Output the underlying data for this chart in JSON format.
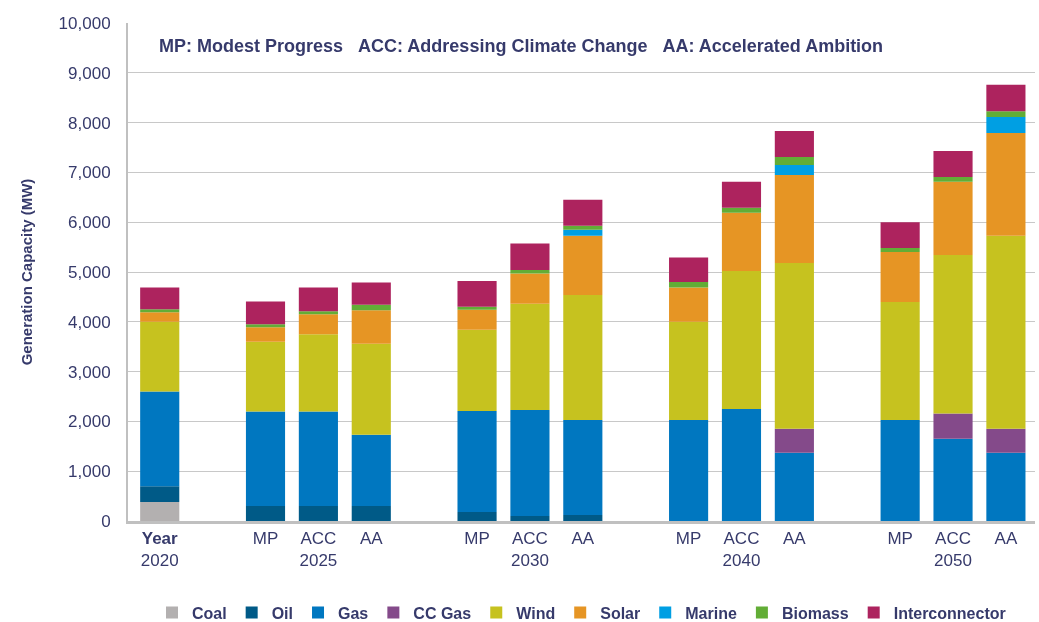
{
  "chart_data": {
    "type": "bar",
    "stacked": true,
    "ylabel": "Generation Capacity (MW)",
    "annotations": [
      "MP: Modest Progress   ACC: Addressing Climate Change   AA: Accelerated Ambition"
    ],
    "categories": [
      "Year\n2020",
      null,
      "MP",
      "ACC\n2025",
      "AA",
      null,
      "MP",
      "ACC\n2030",
      "AA",
      null,
      "MP",
      "ACC\n2040",
      "AA",
      null,
      "MP",
      "ACC\n2050",
      "AA"
    ],
    "series": [
      {
        "name": "Coal",
        "color": "#b3b0b0",
        "values": [
          380,
          null,
          null,
          null,
          null,
          null,
          null,
          null,
          null,
          null,
          null,
          null,
          null,
          null,
          null,
          null,
          null
        ]
      },
      {
        "name": "Oil",
        "color": "#005a87",
        "values": [
          320,
          null,
          300,
          300,
          300,
          null,
          180,
          100,
          120,
          null,
          null,
          null,
          null,
          null,
          null,
          null,
          null
        ]
      },
      {
        "name": "Gas",
        "color": "#0077c0",
        "values": [
          1900,
          null,
          1900,
          1900,
          1430,
          null,
          2030,
          2130,
          1910,
          null,
          2030,
          2250,
          1370,
          null,
          2030,
          1650,
          1370
        ]
      },
      {
        "name": "CC Gas",
        "color": "#844a8a",
        "values": [
          null,
          null,
          null,
          null,
          null,
          null,
          null,
          null,
          null,
          null,
          null,
          null,
          480,
          null,
          null,
          510,
          480
        ]
      },
      {
        "name": "Wind",
        "color": "#c6c21f",
        "values": [
          1400,
          null,
          1400,
          1550,
          1830,
          null,
          1630,
          2130,
          2510,
          null,
          1970,
          2770,
          3330,
          null,
          2370,
          3180,
          3880
        ]
      },
      {
        "name": "Solar",
        "color": "#e69524",
        "values": [
          190,
          null,
          290,
          400,
          670,
          null,
          400,
          610,
          1190,
          null,
          690,
          1170,
          1770,
          null,
          1000,
          1470,
          2060
        ]
      },
      {
        "name": "Marine",
        "color": "#009fe3",
        "values": [
          null,
          null,
          null,
          null,
          null,
          null,
          null,
          null,
          120,
          null,
          null,
          null,
          200,
          null,
          null,
          null,
          320
        ]
      },
      {
        "name": "Biomass",
        "color": "#62ad36",
        "values": [
          60,
          null,
          60,
          60,
          110,
          null,
          60,
          70,
          80,
          null,
          110,
          100,
          160,
          null,
          80,
          100,
          120
        ]
      },
      {
        "name": "Interconnector",
        "color": "#ad235e",
        "values": [
          440,
          null,
          460,
          480,
          450,
          null,
          520,
          530,
          520,
          null,
          490,
          520,
          520,
          null,
          520,
          520,
          530
        ]
      }
    ],
    "ylim": [
      0,
      10000
    ],
    "yticks": [
      0,
      {
        "value": 1000,
        "label": "1,000"
      },
      {
        "value": 2000,
        "label": "2,000"
      },
      {
        "value": 3000,
        "label": "3,000"
      },
      {
        "value": 4000,
        "label": "4,000"
      },
      {
        "value": 5000,
        "label": "5,000"
      },
      {
        "value": 6000,
        "label": "6,000"
      },
      {
        "value": 7000,
        "label": "7,000"
      },
      {
        "value": 8000,
        "label": "8,000"
      },
      {
        "value": 9000,
        "label": "9,000"
      },
      {
        "value": 10000,
        "label": "10,000"
      }
    ],
    "grid": "y",
    "legend": "bottom"
  }
}
